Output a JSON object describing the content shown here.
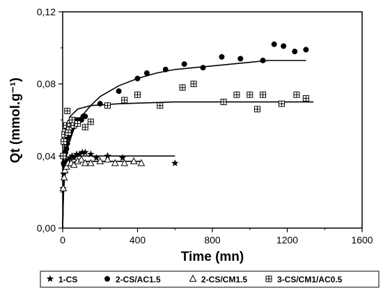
{
  "chart_data": {
    "type": "scatter",
    "xlabel": "Time (mn)",
    "ylabel": "Qt (mmol.g⁻¹)",
    "xlim": [
      0,
      1600
    ],
    "ylim": [
      0,
      0.12
    ],
    "xticks": [
      0,
      400,
      800,
      1200,
      1600
    ],
    "xtick_labels": [
      "0",
      "400",
      "800",
      "1200",
      "1600"
    ],
    "yticks": [
      0,
      0.04,
      0.08,
      0.12
    ],
    "ytick_labels": [
      "0,00",
      "0,04",
      "0,08",
      "0,12"
    ],
    "legend_position": "bottom",
    "series": [
      {
        "name": "1-CS",
        "marker": "star",
        "color": "#000000",
        "points": [
          [
            2,
            0.022
          ],
          [
            5,
            0.03
          ],
          [
            10,
            0.034
          ],
          [
            15,
            0.036
          ],
          [
            20,
            0.037
          ],
          [
            30,
            0.038
          ],
          [
            40,
            0.039
          ],
          [
            50,
            0.04
          ],
          [
            60,
            0.039
          ],
          [
            75,
            0.041
          ],
          [
            90,
            0.041
          ],
          [
            105,
            0.042
          ],
          [
            120,
            0.042
          ],
          [
            150,
            0.041
          ],
          [
            180,
            0.039
          ],
          [
            240,
            0.04
          ],
          [
            320,
            0.039
          ],
          [
            600,
            0.036
          ]
        ],
        "fit": [
          [
            0,
            0
          ],
          [
            4,
            0.02
          ],
          [
            10,
            0.031
          ],
          [
            20,
            0.036
          ],
          [
            40,
            0.039
          ],
          [
            80,
            0.04
          ],
          [
            150,
            0.04
          ],
          [
            600,
            0.04
          ]
        ]
      },
      {
        "name": "2-CS/AC1.5",
        "marker": "circle",
        "color": "#000000",
        "points": [
          [
            5,
            0.036
          ],
          [
            10,
            0.04
          ],
          [
            15,
            0.042
          ],
          [
            20,
            0.044
          ],
          [
            25,
            0.047
          ],
          [
            30,
            0.05
          ],
          [
            35,
            0.052
          ],
          [
            40,
            0.054
          ],
          [
            45,
            0.056
          ],
          [
            50,
            0.057
          ],
          [
            55,
            0.056
          ],
          [
            60,
            0.058
          ],
          [
            65,
            0.057
          ],
          [
            70,
            0.059
          ],
          [
            75,
            0.06
          ],
          [
            90,
            0.06
          ],
          [
            100,
            0.06
          ],
          [
            110,
            0.062
          ],
          [
            120,
            0.062
          ],
          [
            200,
            0.069
          ],
          [
            300,
            0.076
          ],
          [
            400,
            0.083
          ],
          [
            450,
            0.086
          ],
          [
            550,
            0.088
          ],
          [
            650,
            0.091
          ],
          [
            750,
            0.089
          ],
          [
            850,
            0.095
          ],
          [
            950,
            0.094
          ],
          [
            1070,
            0.093
          ],
          [
            1130,
            0.102
          ],
          [
            1180,
            0.101
          ],
          [
            1240,
            0.098
          ],
          [
            1300,
            0.099
          ]
        ],
        "fit": [
          [
            0,
            0
          ],
          [
            5,
            0.025
          ],
          [
            15,
            0.038
          ],
          [
            30,
            0.046
          ],
          [
            60,
            0.055
          ],
          [
            100,
            0.062
          ],
          [
            150,
            0.068
          ],
          [
            200,
            0.073
          ],
          [
            300,
            0.079
          ],
          [
            400,
            0.083
          ],
          [
            500,
            0.086
          ],
          [
            600,
            0.088
          ],
          [
            700,
            0.089
          ],
          [
            800,
            0.09
          ],
          [
            900,
            0.091
          ],
          [
            1000,
            0.092
          ],
          [
            1100,
            0.093
          ],
          [
            1300,
            0.093
          ]
        ]
      },
      {
        "name": "2-CS/CM1.5",
        "marker": "triangle",
        "color": "#000000",
        "points": [
          [
            3,
            0.022
          ],
          [
            8,
            0.028
          ],
          [
            12,
            0.032
          ],
          [
            20,
            0.034
          ],
          [
            30,
            0.036
          ],
          [
            45,
            0.036
          ],
          [
            60,
            0.035
          ],
          [
            80,
            0.037
          ],
          [
            100,
            0.038
          ],
          [
            120,
            0.036
          ],
          [
            150,
            0.036
          ],
          [
            200,
            0.037
          ],
          [
            240,
            0.038
          ],
          [
            280,
            0.036
          ],
          [
            330,
            0.036
          ],
          [
            380,
            0.037
          ],
          [
            420,
            0.036
          ]
        ],
        "fit": [
          [
            0,
            0
          ],
          [
            4,
            0.018
          ],
          [
            10,
            0.028
          ],
          [
            20,
            0.033
          ],
          [
            40,
            0.036
          ],
          [
            80,
            0.037
          ],
          [
            150,
            0.037
          ],
          [
            420,
            0.037
          ]
        ]
      },
      {
        "name": "3-CS/CM1/AC0.5",
        "marker": "square-plus",
        "color": "#000000",
        "points": [
          [
            3,
            0.04
          ],
          [
            6,
            0.048
          ],
          [
            10,
            0.052
          ],
          [
            14,
            0.055
          ],
          [
            20,
            0.057
          ],
          [
            25,
            0.065
          ],
          [
            30,
            0.053
          ],
          [
            35,
            0.056
          ],
          [
            40,
            0.058
          ],
          [
            50,
            0.06
          ],
          [
            60,
            0.057
          ],
          [
            80,
            0.058
          ],
          [
            120,
            0.056
          ],
          [
            150,
            0.059
          ],
          [
            240,
            0.068
          ],
          [
            330,
            0.071
          ],
          [
            400,
            0.074
          ],
          [
            520,
            0.068
          ],
          [
            640,
            0.078
          ],
          [
            700,
            0.08
          ],
          [
            860,
            0.07
          ],
          [
            930,
            0.074
          ],
          [
            1000,
            0.074
          ],
          [
            1040,
            0.066
          ],
          [
            1070,
            0.074
          ],
          [
            1170,
            0.069
          ],
          [
            1250,
            0.074
          ],
          [
            1300,
            0.072
          ]
        ],
        "fit": [
          [
            0,
            0
          ],
          [
            5,
            0.036
          ],
          [
            10,
            0.048
          ],
          [
            20,
            0.056
          ],
          [
            40,
            0.062
          ],
          [
            80,
            0.066
          ],
          [
            150,
            0.068
          ],
          [
            300,
            0.069
          ],
          [
            600,
            0.07
          ],
          [
            1340,
            0.07
          ]
        ]
      }
    ]
  }
}
